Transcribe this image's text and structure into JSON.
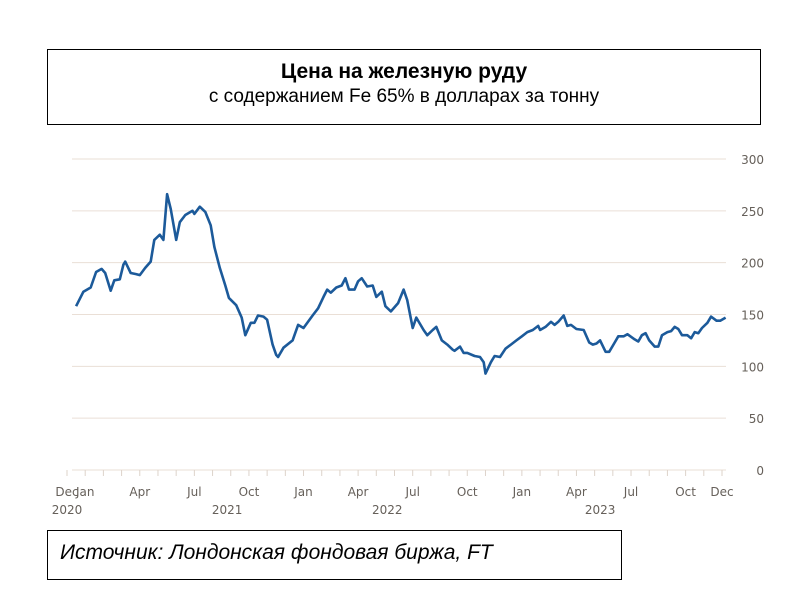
{
  "header": {
    "title": "Цена на железную руду",
    "subtitle": "с содержанием Fe  65% в  долларах за тонну"
  },
  "source": "Источник: Лондонская фондовая биржа, FT",
  "chart_data": {
    "type": "line",
    "title": "Цена на железную руду",
    "xlabel": "",
    "ylabel": "долларах за тонну",
    "ylim": [
      0,
      300
    ],
    "yticks": [
      0,
      50,
      100,
      150,
      200,
      250,
      300
    ],
    "xunit": "months since Dec 2020",
    "xlim": [
      0,
      36
    ],
    "xticks": [
      {
        "m": 0,
        "label": "Dec"
      },
      {
        "m": 1,
        "label": "Jan"
      },
      {
        "m": 4,
        "label": "Apr"
      },
      {
        "m": 7,
        "label": "Jul"
      },
      {
        "m": 10,
        "label": "Oct"
      },
      {
        "m": 13,
        "label": "Jan"
      },
      {
        "m": 16,
        "label": "Apr"
      },
      {
        "m": 19,
        "label": "Jul"
      },
      {
        "m": 22,
        "label": "Oct"
      },
      {
        "m": 25,
        "label": "Jan"
      },
      {
        "m": 28,
        "label": "Apr"
      },
      {
        "m": 31,
        "label": "Jul"
      },
      {
        "m": 34,
        "label": "Oct"
      },
      {
        "m": 36,
        "label": "Dec"
      }
    ],
    "years": [
      {
        "m": 0,
        "label": "2020"
      },
      {
        "m": 8.8,
        "label": "2021"
      },
      {
        "m": 17.6,
        "label": "2022"
      },
      {
        "m": 29.3,
        "label": "2023"
      }
    ],
    "grid": true,
    "color": "#1c5a9a",
    "series": [
      {
        "name": "Fe 65%",
        "points": [
          [
            0.5,
            158
          ],
          [
            0.9,
            172
          ],
          [
            1.3,
            176
          ],
          [
            1.6,
            191
          ],
          [
            1.9,
            194
          ],
          [
            2.1,
            190
          ],
          [
            2.4,
            173
          ],
          [
            2.6,
            183
          ],
          [
            2.9,
            184
          ],
          [
            3.1,
            198
          ],
          [
            3.2,
            201
          ],
          [
            3.5,
            190
          ],
          [
            3.8,
            189
          ],
          [
            4.0,
            188
          ],
          [
            4.3,
            195
          ],
          [
            4.6,
            201
          ],
          [
            4.8,
            222
          ],
          [
            5.1,
            227
          ],
          [
            5.3,
            222
          ],
          [
            5.5,
            266
          ],
          [
            5.7,
            252
          ],
          [
            6.0,
            222
          ],
          [
            6.2,
            239
          ],
          [
            6.5,
            246
          ],
          [
            6.9,
            250
          ],
          [
            7.0,
            247
          ],
          [
            7.3,
            254
          ],
          [
            7.6,
            249
          ],
          [
            7.9,
            236
          ],
          [
            8.1,
            215
          ],
          [
            8.4,
            195
          ],
          [
            8.7,
            178
          ],
          [
            8.9,
            166
          ],
          [
            9.3,
            159
          ],
          [
            9.6,
            147
          ],
          [
            9.8,
            130
          ],
          [
            10.1,
            142
          ],
          [
            10.3,
            142
          ],
          [
            10.5,
            149
          ],
          [
            10.8,
            148
          ],
          [
            11.0,
            145
          ],
          [
            11.3,
            121
          ],
          [
            11.5,
            111
          ],
          [
            11.6,
            109
          ],
          [
            11.9,
            118
          ],
          [
            12.4,
            125
          ],
          [
            12.7,
            140
          ],
          [
            13.0,
            137
          ],
          [
            13.5,
            149
          ],
          [
            13.8,
            156
          ],
          [
            14.1,
            167
          ],
          [
            14.3,
            174
          ],
          [
            14.5,
            171
          ],
          [
            14.8,
            176
          ],
          [
            15.1,
            178
          ],
          [
            15.3,
            185
          ],
          [
            15.5,
            174
          ],
          [
            15.8,
            174
          ],
          [
            16.0,
            182
          ],
          [
            16.2,
            185
          ],
          [
            16.5,
            177
          ],
          [
            16.8,
            178
          ],
          [
            17.0,
            167
          ],
          [
            17.3,
            172
          ],
          [
            17.5,
            158
          ],
          [
            17.8,
            153
          ],
          [
            18.2,
            161
          ],
          [
            18.5,
            174
          ],
          [
            18.7,
            164
          ],
          [
            19.0,
            137
          ],
          [
            19.2,
            147
          ],
          [
            19.6,
            135
          ],
          [
            19.8,
            130
          ],
          [
            20.1,
            135
          ],
          [
            20.3,
            138
          ],
          [
            20.6,
            125
          ],
          [
            20.9,
            121
          ],
          [
            21.2,
            116
          ],
          [
            21.3,
            115
          ],
          [
            21.6,
            119
          ],
          [
            21.8,
            113
          ],
          [
            22.0,
            113
          ],
          [
            22.4,
            110
          ],
          [
            22.7,
            109
          ],
          [
            22.9,
            104
          ],
          [
            23.0,
            93
          ],
          [
            23.3,
            104
          ],
          [
            23.5,
            110
          ],
          [
            23.8,
            109
          ],
          [
            24.1,
            117
          ],
          [
            24.4,
            121
          ],
          [
            24.7,
            125
          ],
          [
            25.0,
            129
          ],
          [
            25.3,
            133
          ],
          [
            25.6,
            135
          ],
          [
            25.9,
            139
          ],
          [
            26.0,
            135
          ],
          [
            26.3,
            138
          ],
          [
            26.6,
            143
          ],
          [
            26.8,
            140
          ],
          [
            27.0,
            143
          ],
          [
            27.3,
            149
          ],
          [
            27.5,
            139
          ],
          [
            27.7,
            140
          ],
          [
            28.0,
            136
          ],
          [
            28.4,
            135
          ],
          [
            28.7,
            123
          ],
          [
            28.9,
            121
          ],
          [
            29.1,
            122
          ],
          [
            29.3,
            125
          ],
          [
            29.6,
            114
          ],
          [
            29.8,
            114
          ],
          [
            30.1,
            123
          ],
          [
            30.3,
            129
          ],
          [
            30.6,
            129
          ],
          [
            30.8,
            131
          ],
          [
            31.2,
            126
          ],
          [
            31.4,
            124
          ],
          [
            31.6,
            130
          ],
          [
            31.8,
            132
          ],
          [
            32.0,
            125
          ],
          [
            32.3,
            119
          ],
          [
            32.5,
            119
          ],
          [
            32.7,
            130
          ],
          [
            33.0,
            133
          ],
          [
            33.2,
            134
          ],
          [
            33.4,
            138
          ],
          [
            33.6,
            136
          ],
          [
            33.8,
            130
          ],
          [
            34.1,
            130
          ],
          [
            34.3,
            127
          ],
          [
            34.5,
            133
          ],
          [
            34.7,
            132
          ],
          [
            34.9,
            137
          ],
          [
            35.2,
            142
          ],
          [
            35.4,
            148
          ],
          [
            35.7,
            144
          ],
          [
            35.9,
            144
          ],
          [
            36.2,
            147
          ]
        ]
      }
    ]
  }
}
